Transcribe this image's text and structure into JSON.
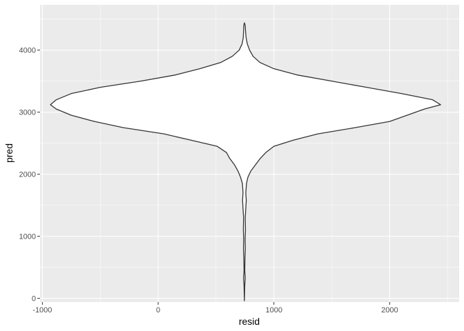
{
  "chart_data": {
    "type": "violin",
    "xlabel": "resid",
    "ylabel": "pred",
    "xlim": [
      -1020,
      2600
    ],
    "ylim": [
      -60,
      4730
    ],
    "x_ticks": [
      -1000,
      0,
      1000,
      2000
    ],
    "x_tick_labels": [
      "-1000",
      "0",
      "1000",
      "2000"
    ],
    "y_ticks": [
      0,
      1000,
      2000,
      3000,
      4000
    ],
    "y_tick_labels": [
      "0",
      "1000",
      "2000",
      "3000",
      "4000"
    ],
    "grid": true,
    "colors": {
      "panel": "#ebebeb",
      "grid_major": "#ffffff",
      "violin_fill": "#ffffff",
      "violin_stroke": "#333333",
      "tick_text": "#4d4d4d"
    },
    "violin": {
      "center": 745,
      "points": [
        {
          "y": -40,
          "left": 745,
          "right": 745
        },
        {
          "y": 200,
          "left": 742,
          "right": 748
        },
        {
          "y": 330,
          "left": 738,
          "right": 752
        },
        {
          "y": 450,
          "left": 742,
          "right": 748
        },
        {
          "y": 650,
          "left": 740,
          "right": 750
        },
        {
          "y": 800,
          "left": 737,
          "right": 753
        },
        {
          "y": 950,
          "left": 739,
          "right": 751
        },
        {
          "y": 1100,
          "left": 736,
          "right": 754
        },
        {
          "y": 1300,
          "left": 738,
          "right": 752
        },
        {
          "y": 1450,
          "left": 733,
          "right": 757
        },
        {
          "y": 1580,
          "left": 729,
          "right": 761
        },
        {
          "y": 1700,
          "left": 733,
          "right": 757
        },
        {
          "y": 1850,
          "left": 728,
          "right": 763
        },
        {
          "y": 1950,
          "left": 712,
          "right": 775
        },
        {
          "y": 2050,
          "left": 690,
          "right": 800
        },
        {
          "y": 2150,
          "left": 660,
          "right": 840
        },
        {
          "y": 2250,
          "left": 620,
          "right": 880
        },
        {
          "y": 2350,
          "left": 590,
          "right": 930
        },
        {
          "y": 2450,
          "left": 510,
          "right": 1000
        },
        {
          "y": 2550,
          "left": 280,
          "right": 1170
        },
        {
          "y": 2650,
          "left": 50,
          "right": 1380
        },
        {
          "y": 2750,
          "left": -300,
          "right": 1700
        },
        {
          "y": 2850,
          "left": -550,
          "right": 2000
        },
        {
          "y": 2950,
          "left": -750,
          "right": 2150
        },
        {
          "y": 3050,
          "left": -880,
          "right": 2300
        },
        {
          "y": 3120,
          "left": -930,
          "right": 2440
        },
        {
          "y": 3200,
          "left": -880,
          "right": 2370
        },
        {
          "y": 3300,
          "left": -750,
          "right": 2100
        },
        {
          "y": 3400,
          "left": -500,
          "right": 1800
        },
        {
          "y": 3500,
          "left": -150,
          "right": 1500
        },
        {
          "y": 3600,
          "left": 150,
          "right": 1200
        },
        {
          "y": 3700,
          "left": 360,
          "right": 1000
        },
        {
          "y": 3800,
          "left": 540,
          "right": 880
        },
        {
          "y": 3900,
          "left": 640,
          "right": 820
        },
        {
          "y": 4000,
          "left": 700,
          "right": 790
        },
        {
          "y": 4100,
          "left": 725,
          "right": 770
        },
        {
          "y": 4200,
          "left": 735,
          "right": 760
        },
        {
          "y": 4300,
          "left": 738,
          "right": 755
        },
        {
          "y": 4400,
          "left": 740,
          "right": 752
        },
        {
          "y": 4440,
          "left": 745,
          "right": 745
        }
      ]
    }
  }
}
